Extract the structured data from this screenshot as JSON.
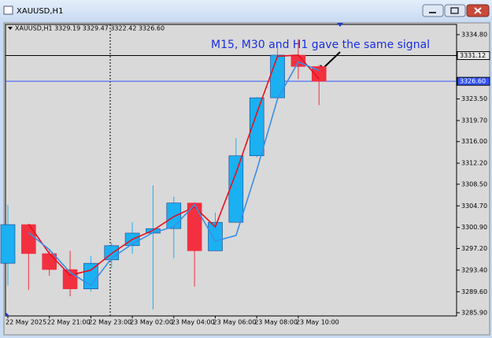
{
  "window_title": "XAUUSD,H1",
  "chart_data": {
    "type": "candlestick",
    "info": "XAUUSD,H1  3329.19 3329.47 3322.42 3326.60",
    "annotation": "M15, M30 and H1 gave the same signal",
    "categories": [
      "22 May 2025",
      null,
      "22 May 21:00",
      null,
      "22 May 23:00",
      null,
      "23 May 02:00",
      null,
      "23 May 04:00",
      null,
      "23 May 06:00",
      null,
      "23 May 08:00",
      null,
      "23 May 10:00",
      null
    ],
    "open": [
      3294.6,
      3301.4,
      3296.3,
      3293.5,
      3290.1,
      3295.2,
      3297.7,
      3299.9,
      3300.7,
      3305.2,
      3296.8,
      3301.8,
      3313.5,
      3323.7,
      3331.2,
      3329.19
    ],
    "high": [
      3304.9,
      3301.5,
      3296.8,
      3296.8,
      3295.9,
      3298.2,
      3301.8,
      3308.3,
      3306.3,
      3305.3,
      3303.5,
      3316.6,
      3323.8,
      3333.3,
      3334.0,
      3329.47
    ],
    "low": [
      3290.7,
      3289.9,
      3292.4,
      3288.8,
      3289.6,
      3293.8,
      3296.3,
      3286.5,
      3295.5,
      3290.5,
      3296.8,
      3301.8,
      3313.2,
      3323.7,
      3327.0,
      3322.42
    ],
    "close": [
      3301.4,
      3296.3,
      3293.5,
      3290.1,
      3294.6,
      3297.7,
      3299.9,
      3300.7,
      3305.2,
      3296.8,
      3301.8,
      3313.5,
      3323.7,
      3331.2,
      3329.2,
      3326.6
    ],
    "up_color": "#1ab0f2",
    "down_color": "#f2303f",
    "lines": [
      {
        "color": "#e8101c",
        "values": [
          null,
          3301.5,
          3296.3,
          3292.5,
          3293.4,
          3296.3,
          3298.8,
          3300.4,
          3302.8,
          3304.5,
          3301.0,
          3310.5,
          3321.0,
          3331.0,
          3331.2,
          3327.0
        ]
      },
      {
        "color": "#3a8ee6",
        "values": [
          null,
          3300.0,
          3297.0,
          3293.0,
          3290.7,
          3295.5,
          3298.0,
          3300.0,
          3301.0,
          3304.9,
          3298.5,
          3299.5,
          3311.0,
          3323.5,
          3330.0,
          3328.5
        ]
      }
    ],
    "hlines": [
      {
        "value": 3331.12,
        "label": "3331.12",
        "color": "#000000"
      },
      {
        "value": 3326.6,
        "label": "3326.60",
        "color": "#3355ff"
      }
    ],
    "ylim": [
      3285.48,
      3336.46
    ],
    "yticks": [
      {
        "value": 3334.8,
        "label": "3334.80"
      },
      {
        "value": 3323.5,
        "label": "3323.50"
      },
      {
        "value": 3319.7,
        "label": "3319.70"
      },
      {
        "value": 3316.0,
        "label": "3316.00"
      },
      {
        "value": 3312.2,
        "label": "3312.20"
      },
      {
        "value": 3308.5,
        "label": "3308.50"
      },
      {
        "value": 3304.7,
        "label": "3304.70"
      },
      {
        "value": 3300.9,
        "label": "3300.90"
      },
      {
        "value": 3297.2,
        "label": "3297.20"
      },
      {
        "value": 3293.4,
        "label": "3293.40"
      },
      {
        "value": 3289.6,
        "label": "3289.60"
      },
      {
        "value": 3285.9,
        "label": "3285.90"
      }
    ]
  }
}
